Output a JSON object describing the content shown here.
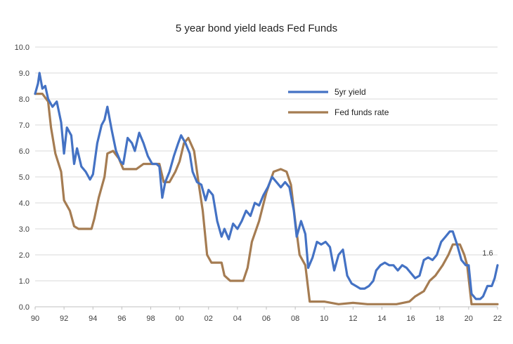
{
  "chart_data": {
    "type": "line",
    "title": "5 year bond yield leads Fed Funds",
    "xlabel": "",
    "ylabel": "",
    "xlim": [
      1990,
      2022
    ],
    "ylim": [
      0,
      10
    ],
    "x_ticks": [
      1990,
      1992,
      1994,
      1996,
      1998,
      2000,
      2002,
      2004,
      2006,
      2008,
      2010,
      2012,
      2014,
      2016,
      2018,
      2020,
      2022
    ],
    "x_tick_labels": [
      "90",
      "92",
      "94",
      "96",
      "98",
      "00",
      "02",
      "04",
      "06",
      "08",
      "10",
      "12",
      "14",
      "16",
      "18",
      "20",
      "22"
    ],
    "y_ticks": [
      0,
      1,
      2,
      3,
      4,
      5,
      6,
      7,
      8,
      9,
      10
    ],
    "y_tick_labels": [
      "0.0",
      "1.0",
      "2.0",
      "3.0",
      "4.0",
      "5.0",
      "6.0",
      "7.0",
      "8.0",
      "9.0",
      "10.0"
    ],
    "grid": "horizontal",
    "legend_position": "top-right",
    "annotation": {
      "text": "1.6",
      "x": 2022.0,
      "y": 1.6
    },
    "series": [
      {
        "name": "5yr yield",
        "color": "#4472C4",
        "points": [
          [
            1990.0,
            8.2
          ],
          [
            1990.2,
            8.6
          ],
          [
            1990.3,
            9.0
          ],
          [
            1990.5,
            8.4
          ],
          [
            1990.7,
            8.5
          ],
          [
            1990.9,
            8.0
          ],
          [
            1991.2,
            7.7
          ],
          [
            1991.5,
            7.9
          ],
          [
            1991.8,
            7.1
          ],
          [
            1992.0,
            5.9
          ],
          [
            1992.2,
            6.9
          ],
          [
            1992.5,
            6.6
          ],
          [
            1992.7,
            5.5
          ],
          [
            1992.9,
            6.1
          ],
          [
            1993.2,
            5.4
          ],
          [
            1993.5,
            5.2
          ],
          [
            1993.8,
            4.9
          ],
          [
            1994.0,
            5.1
          ],
          [
            1994.3,
            6.3
          ],
          [
            1994.6,
            7.0
          ],
          [
            1994.8,
            7.2
          ],
          [
            1995.0,
            7.7
          ],
          [
            1995.3,
            6.8
          ],
          [
            1995.6,
            6.0
          ],
          [
            1995.9,
            5.6
          ],
          [
            1996.1,
            5.5
          ],
          [
            1996.4,
            6.5
          ],
          [
            1996.7,
            6.3
          ],
          [
            1996.9,
            6.0
          ],
          [
            1997.2,
            6.7
          ],
          [
            1997.5,
            6.3
          ],
          [
            1997.8,
            5.8
          ],
          [
            1998.1,
            5.5
          ],
          [
            1998.4,
            5.5
          ],
          [
            1998.6,
            5.4
          ],
          [
            1998.8,
            4.2
          ],
          [
            1999.0,
            4.8
          ],
          [
            1999.3,
            5.2
          ],
          [
            1999.6,
            5.8
          ],
          [
            1999.9,
            6.3
          ],
          [
            2000.1,
            6.6
          ],
          [
            2000.4,
            6.3
          ],
          [
            2000.7,
            5.9
          ],
          [
            2000.9,
            5.2
          ],
          [
            2001.2,
            4.8
          ],
          [
            2001.5,
            4.7
          ],
          [
            2001.8,
            4.1
          ],
          [
            2002.0,
            4.5
          ],
          [
            2002.3,
            4.3
          ],
          [
            2002.6,
            3.3
          ],
          [
            2002.9,
            2.7
          ],
          [
            2003.1,
            3.0
          ],
          [
            2003.4,
            2.6
          ],
          [
            2003.7,
            3.2
          ],
          [
            2004.0,
            3.0
          ],
          [
            2004.3,
            3.3
          ],
          [
            2004.6,
            3.7
          ],
          [
            2004.9,
            3.5
          ],
          [
            2005.2,
            4.0
          ],
          [
            2005.5,
            3.9
          ],
          [
            2005.8,
            4.3
          ],
          [
            2006.1,
            4.6
          ],
          [
            2006.4,
            5.0
          ],
          [
            2006.7,
            4.8
          ],
          [
            2007.0,
            4.6
          ],
          [
            2007.3,
            4.8
          ],
          [
            2007.6,
            4.6
          ],
          [
            2007.9,
            3.7
          ],
          [
            2008.1,
            2.7
          ],
          [
            2008.4,
            3.3
          ],
          [
            2008.7,
            2.8
          ],
          [
            2008.9,
            1.5
          ],
          [
            2009.2,
            1.9
          ],
          [
            2009.5,
            2.5
          ],
          [
            2009.8,
            2.4
          ],
          [
            2010.1,
            2.5
          ],
          [
            2010.4,
            2.3
          ],
          [
            2010.7,
            1.4
          ],
          [
            2011.0,
            2.0
          ],
          [
            2011.3,
            2.2
          ],
          [
            2011.6,
            1.2
          ],
          [
            2011.9,
            0.9
          ],
          [
            2012.2,
            0.8
          ],
          [
            2012.5,
            0.7
          ],
          [
            2012.8,
            0.7
          ],
          [
            2013.1,
            0.8
          ],
          [
            2013.4,
            1.0
          ],
          [
            2013.6,
            1.4
          ],
          [
            2013.9,
            1.6
          ],
          [
            2014.2,
            1.7
          ],
          [
            2014.5,
            1.6
          ],
          [
            2014.8,
            1.6
          ],
          [
            2015.1,
            1.4
          ],
          [
            2015.4,
            1.6
          ],
          [
            2015.7,
            1.5
          ],
          [
            2016.0,
            1.3
          ],
          [
            2016.3,
            1.1
          ],
          [
            2016.6,
            1.2
          ],
          [
            2016.9,
            1.8
          ],
          [
            2017.2,
            1.9
          ],
          [
            2017.5,
            1.8
          ],
          [
            2017.8,
            2.0
          ],
          [
            2018.1,
            2.5
          ],
          [
            2018.4,
            2.7
          ],
          [
            2018.7,
            2.9
          ],
          [
            2018.9,
            2.9
          ],
          [
            2019.2,
            2.4
          ],
          [
            2019.5,
            1.8
          ],
          [
            2019.8,
            1.6
          ],
          [
            2020.0,
            1.6
          ],
          [
            2020.2,
            0.5
          ],
          [
            2020.5,
            0.3
          ],
          [
            2020.8,
            0.3
          ],
          [
            2021.0,
            0.4
          ],
          [
            2021.3,
            0.8
          ],
          [
            2021.6,
            0.8
          ],
          [
            2021.8,
            1.1
          ],
          [
            2022.0,
            1.6
          ]
        ]
      },
      {
        "name": "Fed funds rate",
        "color": "#A57C52",
        "points": [
          [
            1990.0,
            8.2
          ],
          [
            1990.5,
            8.2
          ],
          [
            1990.9,
            7.9
          ],
          [
            1991.1,
            6.9
          ],
          [
            1991.4,
            5.9
          ],
          [
            1991.8,
            5.2
          ],
          [
            1992.0,
            4.1
          ],
          [
            1992.4,
            3.7
          ],
          [
            1992.7,
            3.1
          ],
          [
            1993.0,
            3.0
          ],
          [
            1993.5,
            3.0
          ],
          [
            1993.9,
            3.0
          ],
          [
            1994.1,
            3.4
          ],
          [
            1994.4,
            4.2
          ],
          [
            1994.8,
            5.0
          ],
          [
            1995.0,
            5.9
          ],
          [
            1995.4,
            6.0
          ],
          [
            1995.8,
            5.7
          ],
          [
            1996.1,
            5.3
          ],
          [
            1996.5,
            5.3
          ],
          [
            1997.0,
            5.3
          ],
          [
            1997.5,
            5.5
          ],
          [
            1998.0,
            5.5
          ],
          [
            1998.6,
            5.5
          ],
          [
            1998.9,
            4.8
          ],
          [
            1999.3,
            4.8
          ],
          [
            1999.7,
            5.2
          ],
          [
            2000.0,
            5.6
          ],
          [
            2000.3,
            6.3
          ],
          [
            2000.6,
            6.5
          ],
          [
            2001.0,
            6.0
          ],
          [
            2001.3,
            4.8
          ],
          [
            2001.6,
            3.7
          ],
          [
            2001.9,
            2.0
          ],
          [
            2002.2,
            1.7
          ],
          [
            2002.6,
            1.7
          ],
          [
            2002.9,
            1.7
          ],
          [
            2003.1,
            1.2
          ],
          [
            2003.5,
            1.0
          ],
          [
            2004.0,
            1.0
          ],
          [
            2004.4,
            1.0
          ],
          [
            2004.7,
            1.5
          ],
          [
            2005.0,
            2.5
          ],
          [
            2005.5,
            3.3
          ],
          [
            2006.0,
            4.4
          ],
          [
            2006.5,
            5.2
          ],
          [
            2007.0,
            5.3
          ],
          [
            2007.4,
            5.2
          ],
          [
            2007.7,
            4.7
          ],
          [
            2008.0,
            3.3
          ],
          [
            2008.3,
            2.0
          ],
          [
            2008.7,
            1.6
          ],
          [
            2009.0,
            0.2
          ],
          [
            2010.0,
            0.2
          ],
          [
            2011.0,
            0.1
          ],
          [
            2012.0,
            0.15
          ],
          [
            2013.0,
            0.1
          ],
          [
            2014.0,
            0.1
          ],
          [
            2015.0,
            0.1
          ],
          [
            2015.9,
            0.2
          ],
          [
            2016.3,
            0.4
          ],
          [
            2016.9,
            0.6
          ],
          [
            2017.3,
            1.0
          ],
          [
            2017.7,
            1.2
          ],
          [
            2018.2,
            1.6
          ],
          [
            2018.6,
            2.0
          ],
          [
            2018.9,
            2.4
          ],
          [
            2019.4,
            2.4
          ],
          [
            2019.7,
            2.0
          ],
          [
            2019.9,
            1.6
          ],
          [
            2020.2,
            0.1
          ],
          [
            2021.0,
            0.1
          ],
          [
            2022.0,
            0.1
          ]
        ]
      }
    ]
  }
}
